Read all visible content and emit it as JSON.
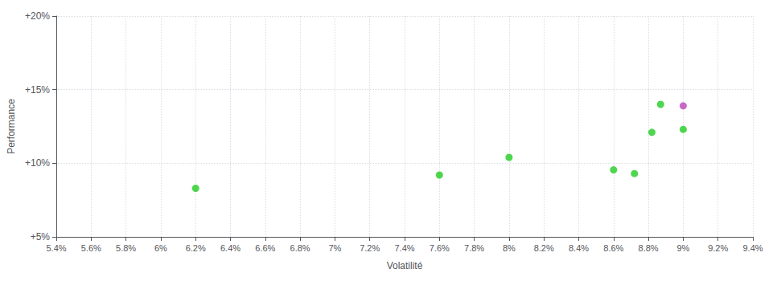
{
  "chart_data": {
    "type": "scatter",
    "xlabel": "Volatilité",
    "ylabel": "Performance",
    "series": [
      {
        "color": "#22cc22",
        "x": [
          6.2,
          7.6,
          8.0,
          8.6,
          8.72,
          8.82,
          8.87,
          9.0
        ],
        "y": [
          8.3,
          9.2,
          10.4,
          9.55,
          9.3,
          12.1,
          14.0,
          12.3
        ]
      },
      {
        "color": "#bb44bb",
        "x": [
          9.0
        ],
        "y": [
          13.9
        ]
      }
    ],
    "xlim": [
      5.4,
      9.4
    ],
    "xticks": [
      {
        "value": 5.4,
        "label": "5.4%"
      },
      {
        "value": 5.6,
        "label": "5.6%"
      },
      {
        "value": 5.8,
        "label": "5.8%"
      },
      {
        "value": 6.0,
        "label": "6%"
      },
      {
        "value": 6.2,
        "label": "6.2%"
      },
      {
        "value": 6.4,
        "label": "6.4%"
      },
      {
        "value": 6.6,
        "label": "6.6%"
      },
      {
        "value": 6.8,
        "label": "6.8%"
      },
      {
        "value": 7.0,
        "label": "7%"
      },
      {
        "value": 7.2,
        "label": "7.2%"
      },
      {
        "value": 7.4,
        "label": "7.4%"
      },
      {
        "value": 7.6,
        "label": "7.6%"
      },
      {
        "value": 7.8,
        "label": "7.8%"
      },
      {
        "value": 8.0,
        "label": "8%"
      },
      {
        "value": 8.2,
        "label": "8.2%"
      },
      {
        "value": 8.4,
        "label": "8.4%"
      },
      {
        "value": 8.6,
        "label": "8.6%"
      },
      {
        "value": 8.8,
        "label": "8.8%"
      },
      {
        "value": 9.0,
        "label": "9%"
      },
      {
        "value": 9.2,
        "label": "9.2%"
      },
      {
        "value": 9.4,
        "label": "9.4%"
      }
    ],
    "ylim": [
      5.0,
      20.0
    ],
    "yticks": [
      {
        "value": 5.0,
        "label": "+5%"
      },
      {
        "value": 10.0,
        "label": "+10%"
      },
      {
        "value": 15.0,
        "label": "+15%"
      },
      {
        "value": 20.0,
        "label": "+20%"
      }
    ],
    "grid": true
  }
}
